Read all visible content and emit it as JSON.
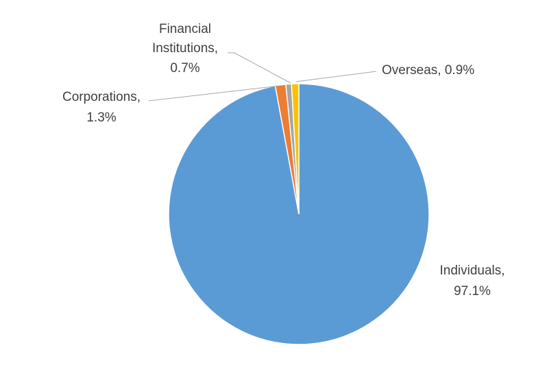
{
  "chart_data": {
    "type": "pie",
    "title": "",
    "slices": [
      {
        "name": "Individuals",
        "value": 97.1,
        "label": "97.1%",
        "color": "#5b9bd5"
      },
      {
        "name": "Corporations",
        "value": 1.3,
        "label": "1.3%",
        "color": "#ed7d31"
      },
      {
        "name": "Financial Institutions",
        "value": 0.7,
        "label": "0.7%",
        "color": "#a5a5a5"
      },
      {
        "name": "Overseas",
        "value": 0.9,
        "label": "0.9%",
        "color": "#ffc000"
      }
    ],
    "legend": "none",
    "data_labels": "outside with leader lines"
  },
  "labels": {
    "individuals_name": "Individuals,",
    "individuals_pct": "97.1%",
    "corporations_name": "Corporations,",
    "corporations_pct": "1.3%",
    "financial_line1": "Financial",
    "financial_line2": "Institutions,",
    "financial_pct": "0.7%",
    "overseas": "Overseas, 0.9%"
  }
}
